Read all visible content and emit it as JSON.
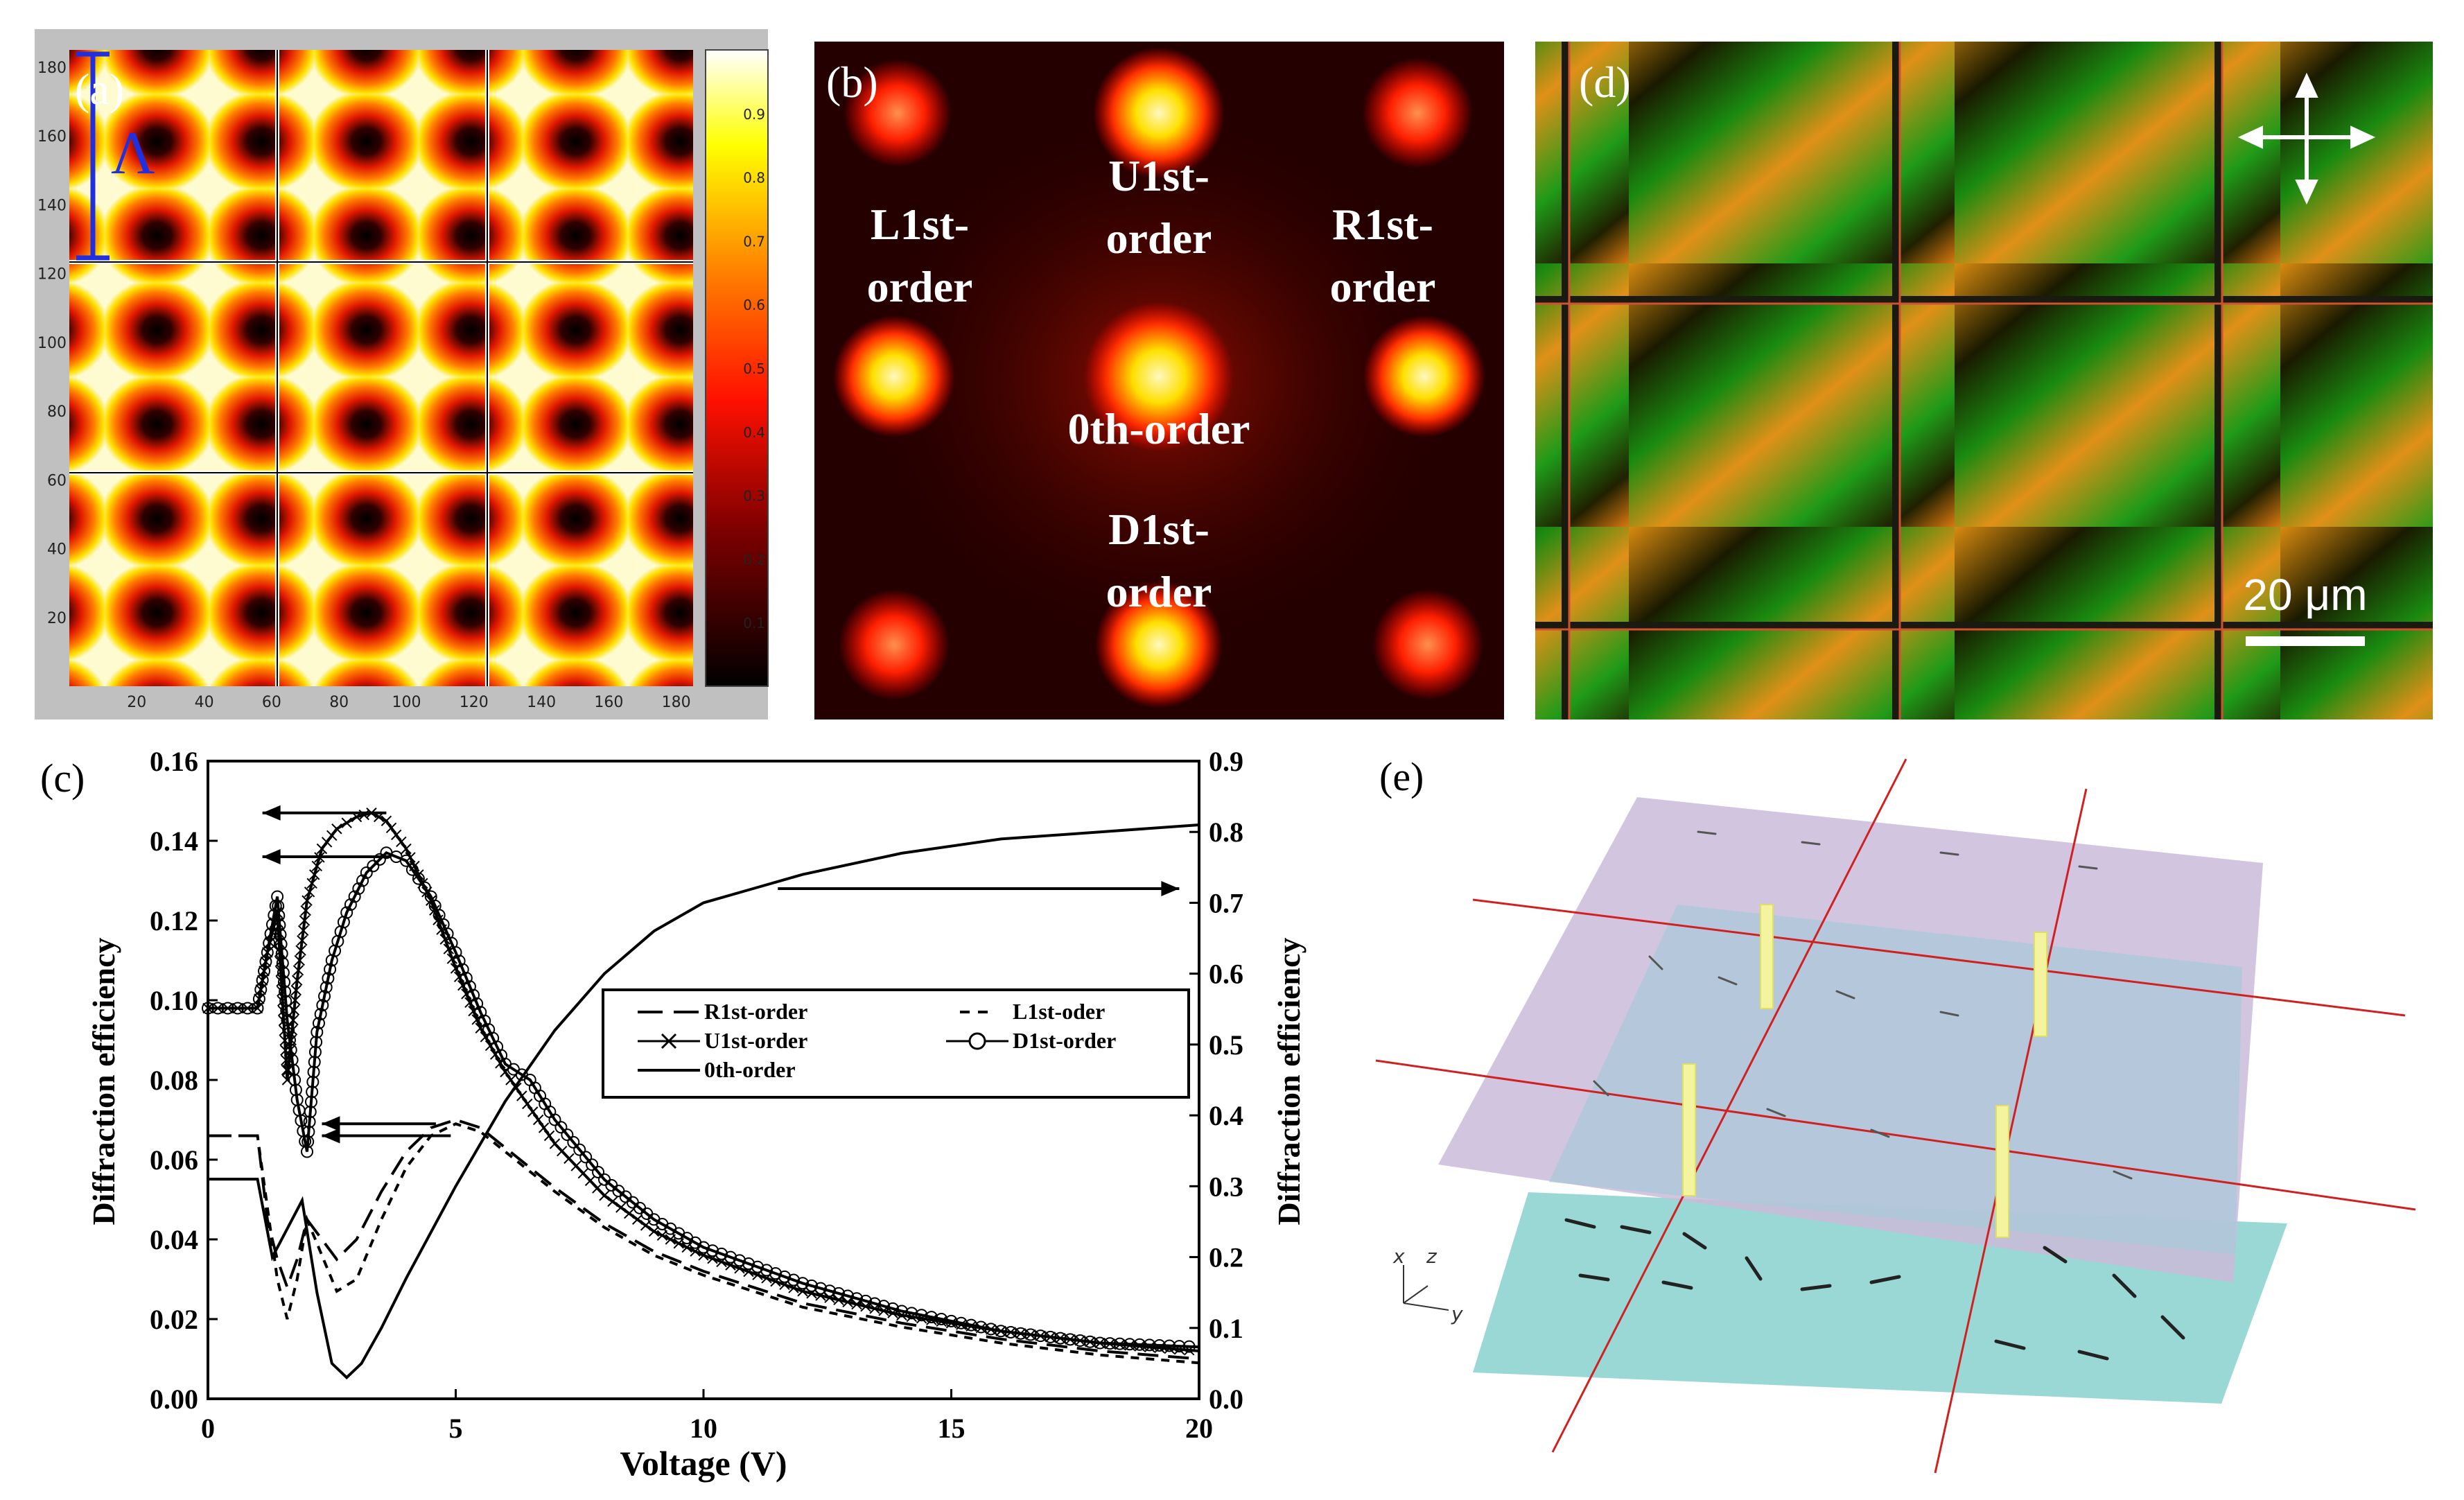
{
  "figure": {
    "panel_a": {
      "label": "(a)",
      "lambda_symbol": "Λ",
      "y_ticks": [
        "20",
        "40",
        "60",
        "80",
        "100",
        "120",
        "140",
        "160",
        "180"
      ],
      "x_ticks": [
        "20",
        "40",
        "60",
        "80",
        "100",
        "120",
        "140",
        "160",
        "180"
      ],
      "colorbar_ticks": [
        "0.1",
        "0.2",
        "0.3",
        "0.4",
        "0.5",
        "0.6",
        "0.7",
        "0.8",
        "0.9"
      ]
    },
    "panel_b": {
      "label": "(b)",
      "orders": {
        "u1": [
          "U1st-",
          "order"
        ],
        "l1": [
          "L1st-",
          "order"
        ],
        "r1": [
          "R1st-",
          "order"
        ],
        "zero": "0th-order",
        "d1": [
          "D1st-",
          "order"
        ]
      }
    },
    "panel_d": {
      "label": "(d)",
      "scale_bar": "20 μm"
    },
    "panel_e": {
      "label": "(e)",
      "axes": {
        "x": "x",
        "z": "z",
        "y": "y"
      }
    }
  },
  "chart_data": {
    "type": "line",
    "panel_label": "(c)",
    "xlabel": "Voltage (V)",
    "ylabel_left": "Diffraction efficiency",
    "ylabel_right": "Diffraction efficiency",
    "xlim": [
      0,
      20
    ],
    "ylim_left": [
      0,
      0.16
    ],
    "ylim_right": [
      0,
      0.9
    ],
    "x_ticks": [
      "0",
      "5",
      "10",
      "15",
      "20"
    ],
    "y_left_ticks": [
      "0.00",
      "0.02",
      "0.04",
      "0.06",
      "0.08",
      "0.10",
      "0.12",
      "0.14",
      "0.16"
    ],
    "y_right_ticks": [
      "0.0",
      "0.1",
      "0.2",
      "0.3",
      "0.4",
      "0.5",
      "0.6",
      "0.7",
      "0.8",
      "0.9"
    ],
    "legend": [
      {
        "name": "R1st-order",
        "marker": "long-dash"
      },
      {
        "name": "L1st-oder",
        "marker": "short-dash"
      },
      {
        "name": "U1st-order",
        "marker": "x"
      },
      {
        "name": "D1st-order",
        "marker": "circle"
      },
      {
        "name": "0th-order",
        "marker": "solid"
      }
    ],
    "series": [
      {
        "name": "R1st-order",
        "axis": "left",
        "x": [
          0,
          1.0,
          1.2,
          1.4,
          1.6,
          1.8,
          2.0,
          2.3,
          2.6,
          3.0,
          3.5,
          4.0,
          4.5,
          5.0,
          5.5,
          6,
          7,
          8,
          9,
          10,
          12,
          14,
          16,
          18,
          20
        ],
        "y": [
          0.066,
          0.066,
          0.045,
          0.035,
          0.028,
          0.035,
          0.045,
          0.04,
          0.035,
          0.04,
          0.052,
          0.062,
          0.068,
          0.07,
          0.068,
          0.063,
          0.053,
          0.044,
          0.037,
          0.032,
          0.024,
          0.019,
          0.015,
          0.012,
          0.01
        ]
      },
      {
        "name": "L1st-oder",
        "axis": "left",
        "x": [
          0,
          1.0,
          1.2,
          1.4,
          1.6,
          1.8,
          2.0,
          2.3,
          2.6,
          3.0,
          3.5,
          4.0,
          4.5,
          5.0,
          5.5,
          6,
          7,
          8,
          9,
          10,
          12,
          14,
          16,
          18,
          20
        ],
        "y": [
          0.066,
          0.066,
          0.048,
          0.03,
          0.02,
          0.03,
          0.045,
          0.036,
          0.027,
          0.03,
          0.045,
          0.058,
          0.066,
          0.069,
          0.067,
          0.062,
          0.052,
          0.043,
          0.036,
          0.031,
          0.023,
          0.018,
          0.014,
          0.011,
          0.009
        ]
      },
      {
        "name": "U1st-order",
        "axis": "left",
        "x": [
          0,
          1.0,
          1.2,
          1.4,
          1.6,
          1.8,
          2.0,
          2.3,
          2.6,
          3.0,
          3.3,
          3.6,
          4.0,
          4.5,
          5.0,
          5.5,
          6,
          7,
          8,
          9,
          10,
          12,
          14,
          16,
          18,
          20
        ],
        "y": [
          0.098,
          0.098,
          0.112,
          0.122,
          0.08,
          0.105,
          0.125,
          0.138,
          0.143,
          0.146,
          0.147,
          0.145,
          0.138,
          0.125,
          0.108,
          0.093,
          0.082,
          0.064,
          0.051,
          0.042,
          0.036,
          0.027,
          0.021,
          0.017,
          0.014,
          0.012
        ]
      },
      {
        "name": "D1st-order",
        "axis": "left",
        "x": [
          0,
          1.0,
          1.2,
          1.4,
          1.6,
          1.8,
          2.0,
          2.2,
          2.5,
          2.8,
          3.2,
          3.6,
          4.0,
          4.5,
          5.0,
          5.5,
          6,
          6.5,
          7,
          8,
          9,
          10,
          12,
          14,
          16,
          18,
          20
        ],
        "y": [
          0.098,
          0.098,
          0.112,
          0.126,
          0.095,
          0.075,
          0.062,
          0.092,
          0.11,
          0.122,
          0.132,
          0.137,
          0.135,
          0.126,
          0.112,
          0.097,
          0.084,
          0.08,
          0.07,
          0.055,
          0.045,
          0.038,
          0.029,
          0.022,
          0.017,
          0.014,
          0.013
        ]
      },
      {
        "name": "0th-order",
        "axis": "right",
        "x": [
          0,
          1.0,
          1.3,
          1.6,
          1.9,
          2.2,
          2.5,
          2.8,
          3.1,
          3.5,
          4,
          5,
          6,
          7,
          8,
          9,
          10,
          11,
          12,
          14,
          16,
          18,
          20
        ],
        "y": [
          0.31,
          0.31,
          0.2,
          0.24,
          0.28,
          0.15,
          0.05,
          0.03,
          0.05,
          0.1,
          0.17,
          0.3,
          0.42,
          0.52,
          0.6,
          0.66,
          0.7,
          0.72,
          0.74,
          0.77,
          0.79,
          0.8,
          0.81
        ]
      }
    ],
    "annotations": [
      {
        "type": "arrow",
        "direction": "left",
        "series": "U1st-order",
        "x_from": 3.6,
        "x_to": 1.1,
        "y": 0.147
      },
      {
        "type": "arrow",
        "direction": "left",
        "series": "D1st-order",
        "x_from": 3.7,
        "x_to": 1.1,
        "y": 0.136
      },
      {
        "type": "arrow",
        "direction": "right",
        "series": "0th-order",
        "axis": "right",
        "x_from": 11.5,
        "x_to": 19.6,
        "y": 0.72
      },
      {
        "type": "arrow",
        "direction": "left",
        "series": "R1st-order",
        "x_from": 4.6,
        "x_to": 2.3,
        "y": 0.069
      },
      {
        "type": "arrow",
        "direction": "left",
        "series": "L1st-oder",
        "x_from": 4.9,
        "x_to": 2.3,
        "y": 0.066
      }
    ]
  }
}
